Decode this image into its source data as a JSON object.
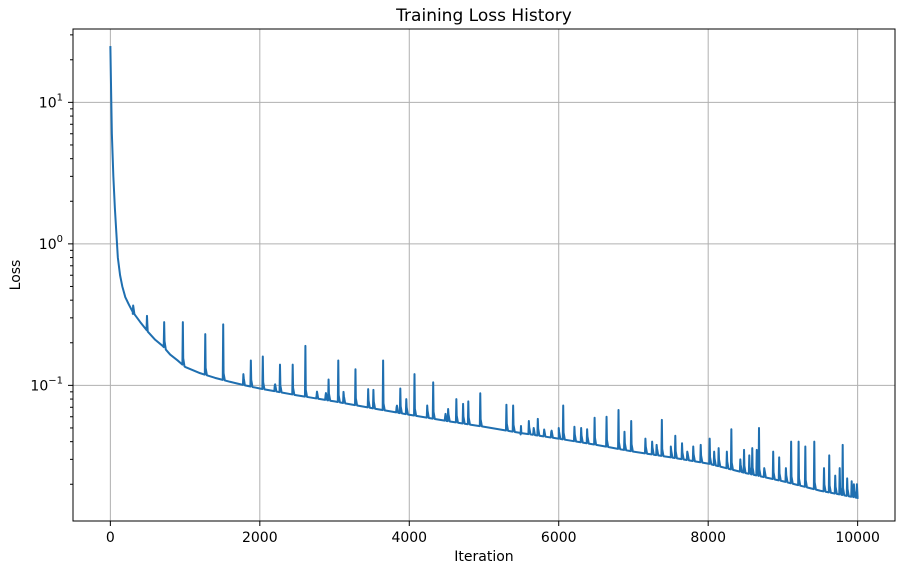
{
  "chart_data": {
    "type": "line",
    "title": "Training Loss History",
    "xlabel": "Iteration",
    "ylabel": "Loss",
    "yscale": "log",
    "grid": true,
    "xlim": [
      -500,
      10500
    ],
    "ylim": [
      0.011,
      33
    ],
    "xticks": [
      0,
      2000,
      4000,
      6000,
      8000,
      10000
    ],
    "yticks": [
      {
        "value": 0.1,
        "base": "10",
        "exp": "−1"
      },
      {
        "value": 1,
        "base": "10",
        "exp": "0"
      },
      {
        "value": 10,
        "base": "10",
        "exp": "1"
      }
    ],
    "line_color": "#1f6fb0",
    "series": [
      {
        "baseline": [
          [
            0,
            25
          ],
          [
            10,
            12
          ],
          [
            20,
            6
          ],
          [
            40,
            3
          ],
          [
            60,
            1.8
          ],
          [
            80,
            1.2
          ],
          [
            100,
            0.8
          ],
          [
            130,
            0.6
          ],
          [
            160,
            0.5
          ],
          [
            200,
            0.42
          ],
          [
            250,
            0.37
          ],
          [
            300,
            0.33
          ],
          [
            400,
            0.28
          ],
          [
            500,
            0.24
          ],
          [
            600,
            0.21
          ],
          [
            700,
            0.19
          ],
          [
            800,
            0.165
          ],
          [
            900,
            0.15
          ],
          [
            1000,
            0.135
          ],
          [
            1200,
            0.122
          ],
          [
            1400,
            0.113
          ],
          [
            1600,
            0.106
          ],
          [
            1800,
            0.1
          ],
          [
            2000,
            0.095
          ],
          [
            2500,
            0.085
          ],
          [
            3000,
            0.077
          ],
          [
            3500,
            0.069
          ],
          [
            4000,
            0.062
          ],
          [
            4500,
            0.056
          ],
          [
            5000,
            0.051
          ],
          [
            5500,
            0.046
          ],
          [
            6000,
            0.042
          ],
          [
            6500,
            0.038
          ],
          [
            7000,
            0.034
          ],
          [
            7500,
            0.031
          ],
          [
            8000,
            0.028
          ],
          [
            8500,
            0.024
          ],
          [
            9000,
            0.021
          ],
          [
            9500,
            0.018
          ],
          [
            10000,
            0.016
          ]
        ],
        "spikes": [
          [
            300,
            0.32
          ],
          [
            490,
            0.31
          ],
          [
            720,
            0.28
          ],
          [
            970,
            0.28
          ],
          [
            1270,
            0.23
          ],
          [
            1510,
            0.27
          ],
          [
            1780,
            0.12
          ],
          [
            1880,
            0.15
          ],
          [
            2040,
            0.16
          ],
          [
            2200,
            0.1
          ],
          [
            2270,
            0.14
          ],
          [
            2440,
            0.14
          ],
          [
            2610,
            0.19
          ],
          [
            2760,
            0.085
          ],
          [
            2880,
            0.085
          ],
          [
            2920,
            0.11
          ],
          [
            3050,
            0.15
          ],
          [
            3120,
            0.09
          ],
          [
            3280,
            0.13
          ],
          [
            3450,
            0.094
          ],
          [
            3520,
            0.093
          ],
          [
            3650,
            0.15
          ],
          [
            3830,
            0.07
          ],
          [
            3880,
            0.095
          ],
          [
            3960,
            0.08
          ],
          [
            4070,
            0.12
          ],
          [
            4240,
            0.072
          ],
          [
            4320,
            0.105
          ],
          [
            4480,
            0.06
          ],
          [
            4520,
            0.068
          ],
          [
            4630,
            0.08
          ],
          [
            4720,
            0.074
          ],
          [
            4790,
            0.077
          ],
          [
            4950,
            0.088
          ],
          [
            5300,
            0.073
          ],
          [
            5390,
            0.072
          ],
          [
            5490,
            0.045
          ],
          [
            5600,
            0.056
          ],
          [
            5660,
            0.046
          ],
          [
            5720,
            0.058
          ],
          [
            5800,
            0.045
          ],
          [
            5900,
            0.047
          ],
          [
            6000,
            0.05
          ],
          [
            6060,
            0.072
          ],
          [
            6210,
            0.051
          ],
          [
            6300,
            0.05
          ],
          [
            6380,
            0.049
          ],
          [
            6480,
            0.059
          ],
          [
            6640,
            0.06
          ],
          [
            6800,
            0.067
          ],
          [
            6880,
            0.047
          ],
          [
            6970,
            0.056
          ],
          [
            7160,
            0.042
          ],
          [
            7250,
            0.04
          ],
          [
            7310,
            0.038
          ],
          [
            7380,
            0.057
          ],
          [
            7500,
            0.037
          ],
          [
            7560,
            0.044
          ],
          [
            7650,
            0.039
          ],
          [
            7720,
            0.034
          ],
          [
            7800,
            0.037
          ],
          [
            7900,
            0.038
          ],
          [
            8020,
            0.042
          ],
          [
            8080,
            0.034
          ],
          [
            8140,
            0.036
          ],
          [
            8250,
            0.034
          ],
          [
            8310,
            0.049
          ],
          [
            8430,
            0.03
          ],
          [
            8480,
            0.035
          ],
          [
            8550,
            0.032
          ],
          [
            8590,
            0.036
          ],
          [
            8650,
            0.035
          ],
          [
            8680,
            0.05
          ],
          [
            8750,
            0.026
          ],
          [
            8870,
            0.034
          ],
          [
            8950,
            0.031
          ],
          [
            9040,
            0.026
          ],
          [
            9110,
            0.04
          ],
          [
            9210,
            0.04
          ],
          [
            9300,
            0.037
          ],
          [
            9420,
            0.04
          ],
          [
            9550,
            0.026
          ],
          [
            9620,
            0.032
          ],
          [
            9700,
            0.023
          ],
          [
            9760,
            0.026
          ],
          [
            9800,
            0.038
          ],
          [
            9860,
            0.022
          ],
          [
            9920,
            0.021
          ],
          [
            9950,
            0.02
          ],
          [
            9990,
            0.02
          ]
        ]
      }
    ]
  }
}
